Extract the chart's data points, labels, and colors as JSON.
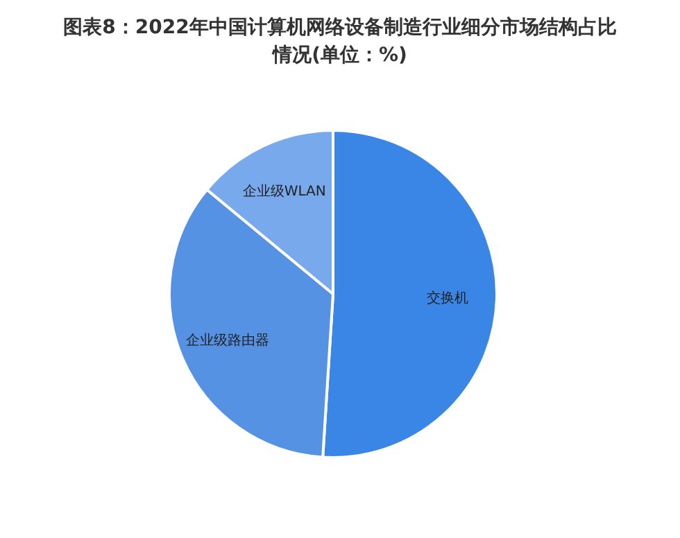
{
  "chart_data": {
    "type": "pie",
    "title": "图表8：2022年中国计算机网络设备制造行业细分市场结构占比情况(单位：%)",
    "categories": [
      "交换机",
      "企业级路由器",
      "企业级WLAN"
    ],
    "values": [
      51,
      35,
      14
    ],
    "colors": [
      "#3a86e6",
      "#5592e4",
      "#78a9ec"
    ],
    "legend": false
  }
}
